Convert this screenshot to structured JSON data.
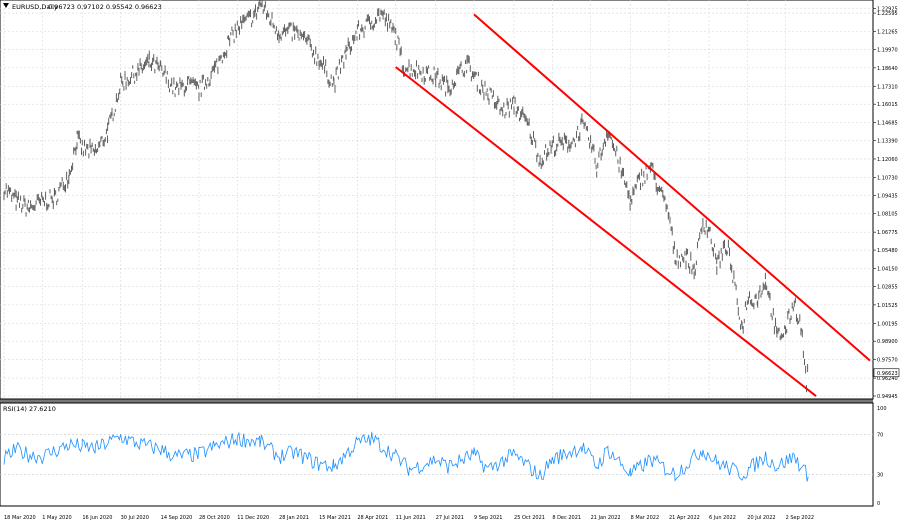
{
  "window": {
    "symbol_label": "EURUSD,Daily",
    "ohlc_values": "0.96723 0.97102 0.95542 0.96623"
  },
  "indicator": {
    "label": "RSI(14) 27.6210",
    "scale_labels": [
      "100",
      "70",
      "30",
      "0"
    ]
  },
  "chart_data": [
    {
      "type": "line",
      "title": "EURUSD,Daily",
      "x_tick_labels": [
        "18 Mar 2020",
        "1 May 2020",
        "16 Jun 2020",
        "30 Jul 2020",
        "14 Sep 2020",
        "28 Oct 2020",
        "11 Dec 2020",
        "28 Jan 2021",
        "15 Mar 2021",
        "28 Apr 2021",
        "11 Jun 2021",
        "27 Jul 2021",
        "9 Sep 2021",
        "25 Oct 2021",
        "8 Dec 2021",
        "21 Jan 2022",
        "8 Mar 2022",
        "21 Apr 2022",
        "6 Jun 2022",
        "20 Jul 2022",
        "2 Sep 2022"
      ],
      "y_tick_labels": [
        "1.22925",
        "1.22595",
        "1.21265",
        "1.19970",
        "1.18640",
        "1.17310",
        "1.16015",
        "1.14685",
        "1.13390",
        "1.12060",
        "1.10730",
        "1.09435",
        "1.08105",
        "1.06775",
        "1.05480",
        "1.04150",
        "1.02855",
        "1.01525",
        "1.00195",
        "0.98900",
        "0.97570",
        "0.96240",
        "0.94945"
      ],
      "ylim": [
        0.94945,
        1.2325
      ],
      "last_price_label": "0.96623",
      "series": [
        {
          "color": "#606060",
          "points": [
            [
              "18 Mar 2020",
              1.1
            ],
            [
              "1 Apr 2020",
              1.09
            ],
            [
              "15 Apr 2020",
              1.085
            ],
            [
              "1 May 2020",
              1.09
            ],
            [
              "15 May 2020",
              1.092
            ],
            [
              "1 Jun 2020",
              1.11
            ],
            [
              "10 Jun 2020",
              1.135
            ],
            [
              "16 Jun 2020",
              1.128
            ],
            [
              "1 Jul 2020",
              1.125
            ],
            [
              "15 Jul 2020",
              1.14
            ],
            [
              "30 Jul 2020",
              1.175
            ],
            [
              "15 Aug 2020",
              1.182
            ],
            [
              "1 Sep 2020",
              1.19
            ],
            [
              "14 Sep 2020",
              1.185
            ],
            [
              "1 Oct 2020",
              1.17
            ],
            [
              "15 Oct 2020",
              1.175
            ],
            [
              "28 Oct 2020",
              1.17
            ],
            [
              "15 Nov 2020",
              1.185
            ],
            [
              "1 Dec 2020",
              1.205
            ],
            [
              "11 Dec 2020",
              1.215
            ],
            [
              "1 Jan 2021",
              1.225
            ],
            [
              "6 Jan 2021",
              1.233
            ],
            [
              "28 Jan 2021",
              1.212
            ],
            [
              "15 Feb 2021",
              1.212
            ],
            [
              "1 Mar 2021",
              1.205
            ],
            [
              "15 Mar 2021",
              1.192
            ],
            [
              "1 Apr 2021",
              1.175
            ],
            [
              "15 Apr 2021",
              1.197
            ],
            [
              "28 Apr 2021",
              1.212
            ],
            [
              "15 May 2021",
              1.22
            ],
            [
              "25 May 2021",
              1.226
            ],
            [
              "11 Jun 2021",
              1.21
            ],
            [
              "20 Jun 2021",
              1.187
            ],
            [
              "5 Jul 2021",
              1.185
            ],
            [
              "27 Jul 2021",
              1.18
            ],
            [
              "10 Aug 2021",
              1.172
            ],
            [
              "1 Sep 2021",
              1.19
            ],
            [
              "9 Sep 2021",
              1.18
            ],
            [
              "25 Sep 2021",
              1.168
            ],
            [
              "12 Oct 2021",
              1.155
            ],
            [
              "25 Oct 2021",
              1.16
            ],
            [
              "10 Nov 2021",
              1.145
            ],
            [
              "24 Nov 2021",
              1.12
            ],
            [
              "8 Dec 2021",
              1.13
            ],
            [
              "1 Jan 2022",
              1.133
            ],
            [
              "11 Jan 2022",
              1.145
            ],
            [
              "21 Jan 2022",
              1.132
            ],
            [
              "28 Jan 2022",
              1.115
            ],
            [
              "10 Feb 2022",
              1.142
            ],
            [
              "24 Feb 2022",
              1.115
            ],
            [
              "8 Mar 2022",
              1.09
            ],
            [
              "18 Mar 2022",
              1.105
            ],
            [
              "31 Mar 2022",
              1.115
            ],
            [
              "21 Apr 2022",
              1.08
            ],
            [
              "28 Apr 2022",
              1.05
            ],
            [
              "11 May 2022",
              1.05
            ],
            [
              "20 May 2022",
              1.04
            ],
            [
              "30 May 2022",
              1.075
            ],
            [
              "6 Jun 2022",
              1.07
            ],
            [
              "15 Jun 2022",
              1.045
            ],
            [
              "27 Jun 2022",
              1.058
            ],
            [
              "14 Jul 2022",
              0.998
            ],
            [
              "20 Jul 2022",
              1.02
            ],
            [
              "1 Aug 2022",
              1.02
            ],
            [
              "10 Aug 2022",
              1.034
            ],
            [
              "23 Aug 2022",
              0.992
            ],
            [
              "2 Sep 2022",
              0.997
            ],
            [
              "12 Sep 2022",
              1.018
            ],
            [
              "20 Sep 2022",
              0.998
            ],
            [
              "26 Sep 2022",
              0.96
            ],
            [
              "28 Sep 2022",
              0.96623
            ]
          ]
        }
      ],
      "annotations": [
        {
          "type": "trendline",
          "color": "#ff0000",
          "from": [
            "9 Sep 2021",
            1.225
          ],
          "to": [
            "8 Dec 2022",
            0.975
          ]
        },
        {
          "type": "trendline",
          "color": "#ff0000",
          "from": [
            "11 Jun 2021",
            1.187
          ],
          "to": [
            "7 Oct 2022",
            0.9494
          ]
        }
      ]
    },
    {
      "type": "line",
      "title": "RSI(14) 27.6210",
      "ylim": [
        0,
        100
      ],
      "y_tick_labels": [
        "100",
        "70",
        "30",
        "0"
      ],
      "series": [
        {
          "color": "#1e90ff",
          "points": [
            [
              "18 Mar 2020",
              45
            ],
            [
              "1 Apr 2020",
              55
            ],
            [
              "15 Apr 2020",
              50
            ],
            [
              "1 May 2020",
              48
            ],
            [
              "1 Jun 2020",
              60
            ],
            [
              "16 Jun 2020",
              58
            ],
            [
              "1 Jul 2020",
              56
            ],
            [
              "30 Jul 2020",
              68
            ],
            [
              "15 Aug 2020",
              62
            ],
            [
              "14 Sep 2020",
              55
            ],
            [
              "1 Oct 2020",
              48
            ],
            [
              "28 Oct 2020",
              50
            ],
            [
              "15 Nov 2020",
              58
            ],
            [
              "11 Dec 2020",
              66
            ],
            [
              "6 Jan 2021",
              63
            ],
            [
              "28 Jan 2021",
              48
            ],
            [
              "15 Feb 2021",
              52
            ],
            [
              "15 Mar 2021",
              40
            ],
            [
              "1 Apr 2021",
              38
            ],
            [
              "28 Apr 2021",
              62
            ],
            [
              "15 May 2021",
              66
            ],
            [
              "11 Jun 2021",
              48
            ],
            [
              "27 Jun 2021",
              35
            ],
            [
              "27 Jul 2021",
              45
            ],
            [
              "10 Aug 2021",
              38
            ],
            [
              "9 Sep 2021",
              50
            ],
            [
              "25 Sep 2021",
              35
            ],
            [
              "25 Oct 2021",
              50
            ],
            [
              "24 Nov 2021",
              28
            ],
            [
              "8 Dec 2021",
              45
            ],
            [
              "11 Jan 2022",
              58
            ],
            [
              "28 Jan 2022",
              38
            ],
            [
              "10 Feb 2022",
              55
            ],
            [
              "8 Mar 2022",
              30
            ],
            [
              "31 Mar 2022",
              45
            ],
            [
              "28 Apr 2022",
              30
            ],
            [
              "30 May 2022",
              55
            ],
            [
              "15 Jun 2022",
              42
            ],
            [
              "14 Jul 2022",
              30
            ],
            [
              "10 Aug 2022",
              48
            ],
            [
              "23 Aug 2022",
              38
            ],
            [
              "12 Sep 2022",
              48
            ],
            [
              "28 Sep 2022",
              27.621
            ]
          ]
        }
      ]
    }
  ]
}
